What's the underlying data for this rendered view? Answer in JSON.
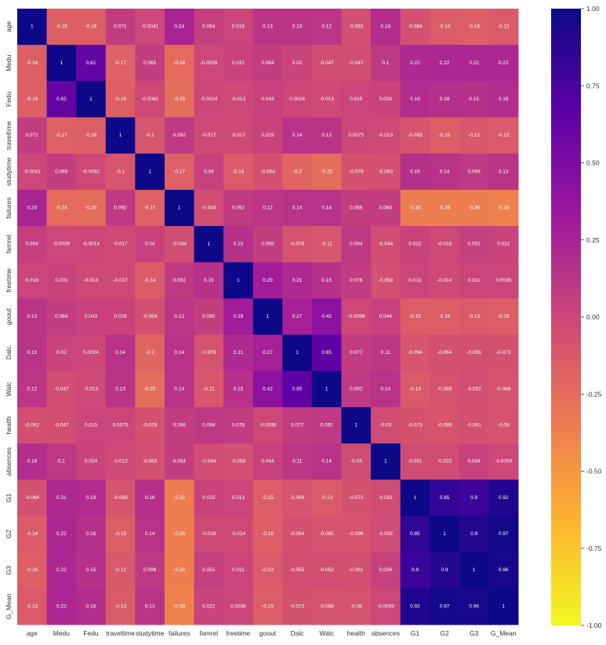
{
  "chart_data": {
    "type": "heatmap",
    "title": "",
    "xlabel": "",
    "ylabel": "",
    "labels": [
      "age",
      "Medu",
      "Fedu",
      "traveltime",
      "studytime",
      "failures",
      "famrel",
      "freetime",
      "goout",
      "Dalc",
      "Walc",
      "health",
      "absences",
      "G1",
      "G2",
      "G3",
      "G_Mean"
    ],
    "matrix": [
      [
        "1",
        "-0.16",
        "-0.16",
        "0.071",
        "-0.0041",
        "0.24",
        "0.054",
        "0.016",
        "0.13",
        "0.13",
        "0.12",
        "-0.062",
        "0.18",
        "-0.064",
        "-0.14",
        "-0.16",
        "-0.13"
      ],
      [
        "-0.16",
        "1",
        "0.62",
        "-0.17",
        "0.065",
        "-0.24",
        "-0.0039",
        "0.031",
        "0.064",
        "0.02",
        "-0.047",
        "-0.047",
        "0.1",
        "0.21",
        "0.22",
        "0.22",
        "0.22"
      ],
      [
        "-0.16",
        "0.62",
        "1",
        "-0.16",
        "-0.0092",
        "-0.25",
        "-0.0014",
        "-0.013",
        "0.043",
        "0.0024",
        "-0.013",
        "0.015",
        "0.024",
        "0.19",
        "0.16",
        "0.15",
        "0.18"
      ],
      [
        "0.071",
        "-0.17",
        "-0.16",
        "1",
        "-0.1",
        "0.092",
        "-0.017",
        "-0.017",
        "0.029",
        "0.14",
        "0.13",
        "0.0075",
        "-0.013",
        "-0.093",
        "-0.15",
        "-0.12",
        "-0.13"
      ],
      [
        "-0.0041",
        "0.065",
        "-0.0092",
        "-0.1",
        "1",
        "-0.17",
        "0.04",
        "-0.14",
        "-0.064",
        "-0.2",
        "-0.25",
        "-0.076",
        "-0.063",
        "0.16",
        "0.14",
        "0.098",
        "0.13"
      ],
      [
        "0.24",
        "-0.24",
        "-0.25",
        "0.092",
        "-0.17",
        "1",
        "-0.044",
        "0.092",
        "0.12",
        "0.14",
        "0.14",
        "0.066",
        "0.064",
        "-0.35",
        "-0.36",
        "-0.36",
        "-0.38"
      ],
      [
        "0.054",
        "-0.0039",
        "-0.0014",
        "-0.017",
        "0.04",
        "-0.044",
        "1",
        "0.15",
        "0.065",
        "-0.078",
        "-0.11",
        "0.094",
        "-0.044",
        "0.022",
        "-0.018",
        "0.051",
        "0.022"
      ],
      [
        "0.016",
        "0.031",
        "-0.013",
        "-0.017",
        "-0.14",
        "0.092",
        "0.15",
        "1",
        "0.29",
        "0.21",
        "0.15",
        "0.076",
        "-0.058",
        "0.013",
        "-0.014",
        "0.011",
        "0.0036"
      ],
      [
        "0.13",
        "0.064",
        "0.043",
        "0.029",
        "-0.064",
        "0.12",
        "0.065",
        "0.29",
        "1",
        "0.27",
        "0.42",
        "-0.0096",
        "0.044",
        "-0.15",
        "-0.16",
        "-0.13",
        "-0.15"
      ],
      [
        "0.13",
        "0.02",
        "0.0024",
        "0.14",
        "-0.2",
        "0.14",
        "-0.078",
        "0.21",
        "0.27",
        "1",
        "0.65",
        "0.077",
        "0.11",
        "-0.094",
        "-0.064",
        "-0.055",
        "-0.073"
      ],
      [
        "0.12",
        "-0.047",
        "-0.013",
        "0.13",
        "-0.25",
        "0.14",
        "-0.11",
        "0.15",
        "0.42",
        "0.65",
        "1",
        "0.092",
        "0.14",
        "-0.13",
        "-0.085",
        "-0.052",
        "-0.088"
      ],
      [
        "-0.062",
        "-0.047",
        "0.015",
        "0.0075",
        "-0.076",
        "0.066",
        "0.094",
        "0.076",
        "-0.0096",
        "0.077",
        "0.092",
        "1",
        "-0.03",
        "-0.073",
        "-0.096",
        "-0.061",
        "-0.08"
      ],
      [
        "0.18",
        "0.1",
        "0.024",
        "-0.013",
        "-0.063",
        "0.064",
        "-0.044",
        "-0.058",
        "0.044",
        "0.11",
        "0.14",
        "-0.03",
        "1",
        "-0.031",
        "-0.032",
        "0.034",
        "-0.0059"
      ],
      [
        "-0.064",
        "0.21",
        "0.19",
        "-0.093",
        "0.16",
        "-0.35",
        "0.022",
        "0.013",
        "-0.15",
        "-0.094",
        "-0.13",
        "-0.073",
        "-0.031",
        "1",
        "0.85",
        "0.8",
        "0.92"
      ],
      [
        "-0.14",
        "0.22",
        "0.16",
        "-0.15",
        "0.14",
        "-0.36",
        "-0.018",
        "-0.014",
        "-0.16",
        "-0.064",
        "-0.085",
        "-0.096",
        "-0.032",
        "0.85",
        "1",
        "0.9",
        "0.97"
      ],
      [
        "-0.16",
        "0.22",
        "0.15",
        "-0.12",
        "0.098",
        "-0.36",
        "0.051",
        "0.011",
        "-0.13",
        "-0.055",
        "-0.052",
        "-0.061",
        "0.034",
        "0.8",
        "0.9",
        "1",
        "0.96"
      ],
      [
        "-0.13",
        "0.22",
        "0.18",
        "-0.13",
        "0.13",
        "-0.38",
        "0.022",
        "0.0036",
        "-0.15",
        "-0.073",
        "-0.088",
        "-0.08",
        "-0.0059",
        "0.92",
        "0.97",
        "0.96",
        "1"
      ]
    ],
    "colorscale": "plasma_r",
    "vmin": -1.0,
    "vmax": 1.0,
    "colorbar_ticks": [
      "1.00",
      "0.75",
      "0.50",
      "0.25",
      "0.00",
      "-0.25",
      "-0.50",
      "-0.75",
      "-1.00"
    ],
    "colorbar_stops": [
      "#f0f921",
      "#fdb42f",
      "#ed7953",
      "#cc4778",
      "#9c179e",
      "#5c01a6",
      "#0d0887"
    ]
  }
}
